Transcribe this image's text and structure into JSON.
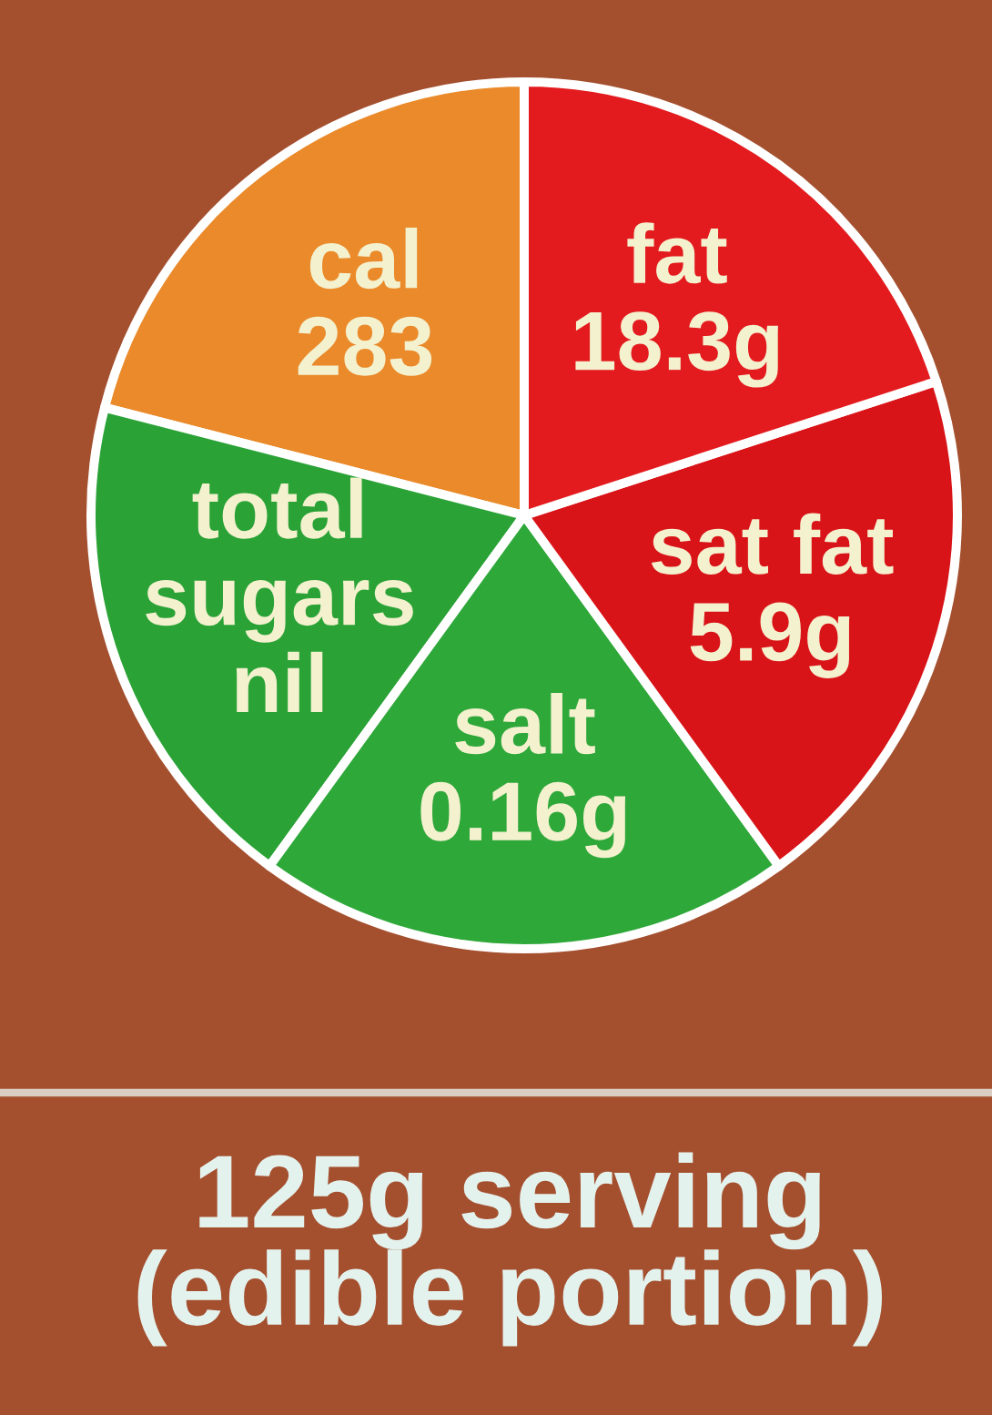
{
  "chart_data": {
    "type": "pie",
    "categories": [
      "cal\n283",
      "total\nsugars\nnil",
      "salt\n0.16g",
      "sat fat\n5.9g",
      "fat\n18.3g"
    ],
    "values": [
      21,
      19,
      20,
      20,
      20
    ],
    "colors": [
      "#ea8a2a",
      "#2aa236",
      "#2fa83a",
      "#d91418",
      "#e31b1e"
    ],
    "annotations": [
      "125g serving\n(edible portion)"
    ]
  }
}
